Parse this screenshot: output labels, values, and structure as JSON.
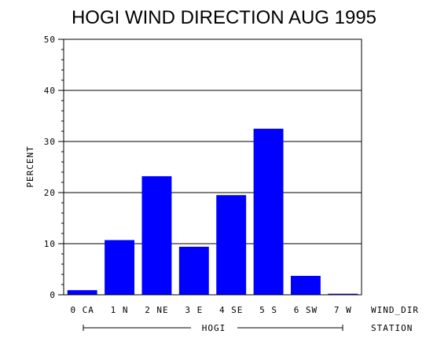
{
  "chart_data": {
    "type": "bar",
    "title": "HOGI WIND DIRECTION AUG 1995",
    "ylabel": "PERCENT",
    "xlabel": "WIND_DIR",
    "group_label": "HOGI",
    "group_axis_label": "STATION",
    "categories": [
      "0 CA",
      "1 N",
      "2 NE",
      "3 E",
      "4 SE",
      "5 S",
      "6 SW",
      "7 W"
    ],
    "values": [
      0.9,
      10.7,
      23.2,
      9.4,
      19.5,
      32.5,
      3.7,
      0.2
    ],
    "ylim": [
      0,
      50
    ],
    "yticks": [
      0,
      10,
      20,
      30,
      40,
      50
    ],
    "grid": true,
    "bar_color": "#0000ff"
  }
}
